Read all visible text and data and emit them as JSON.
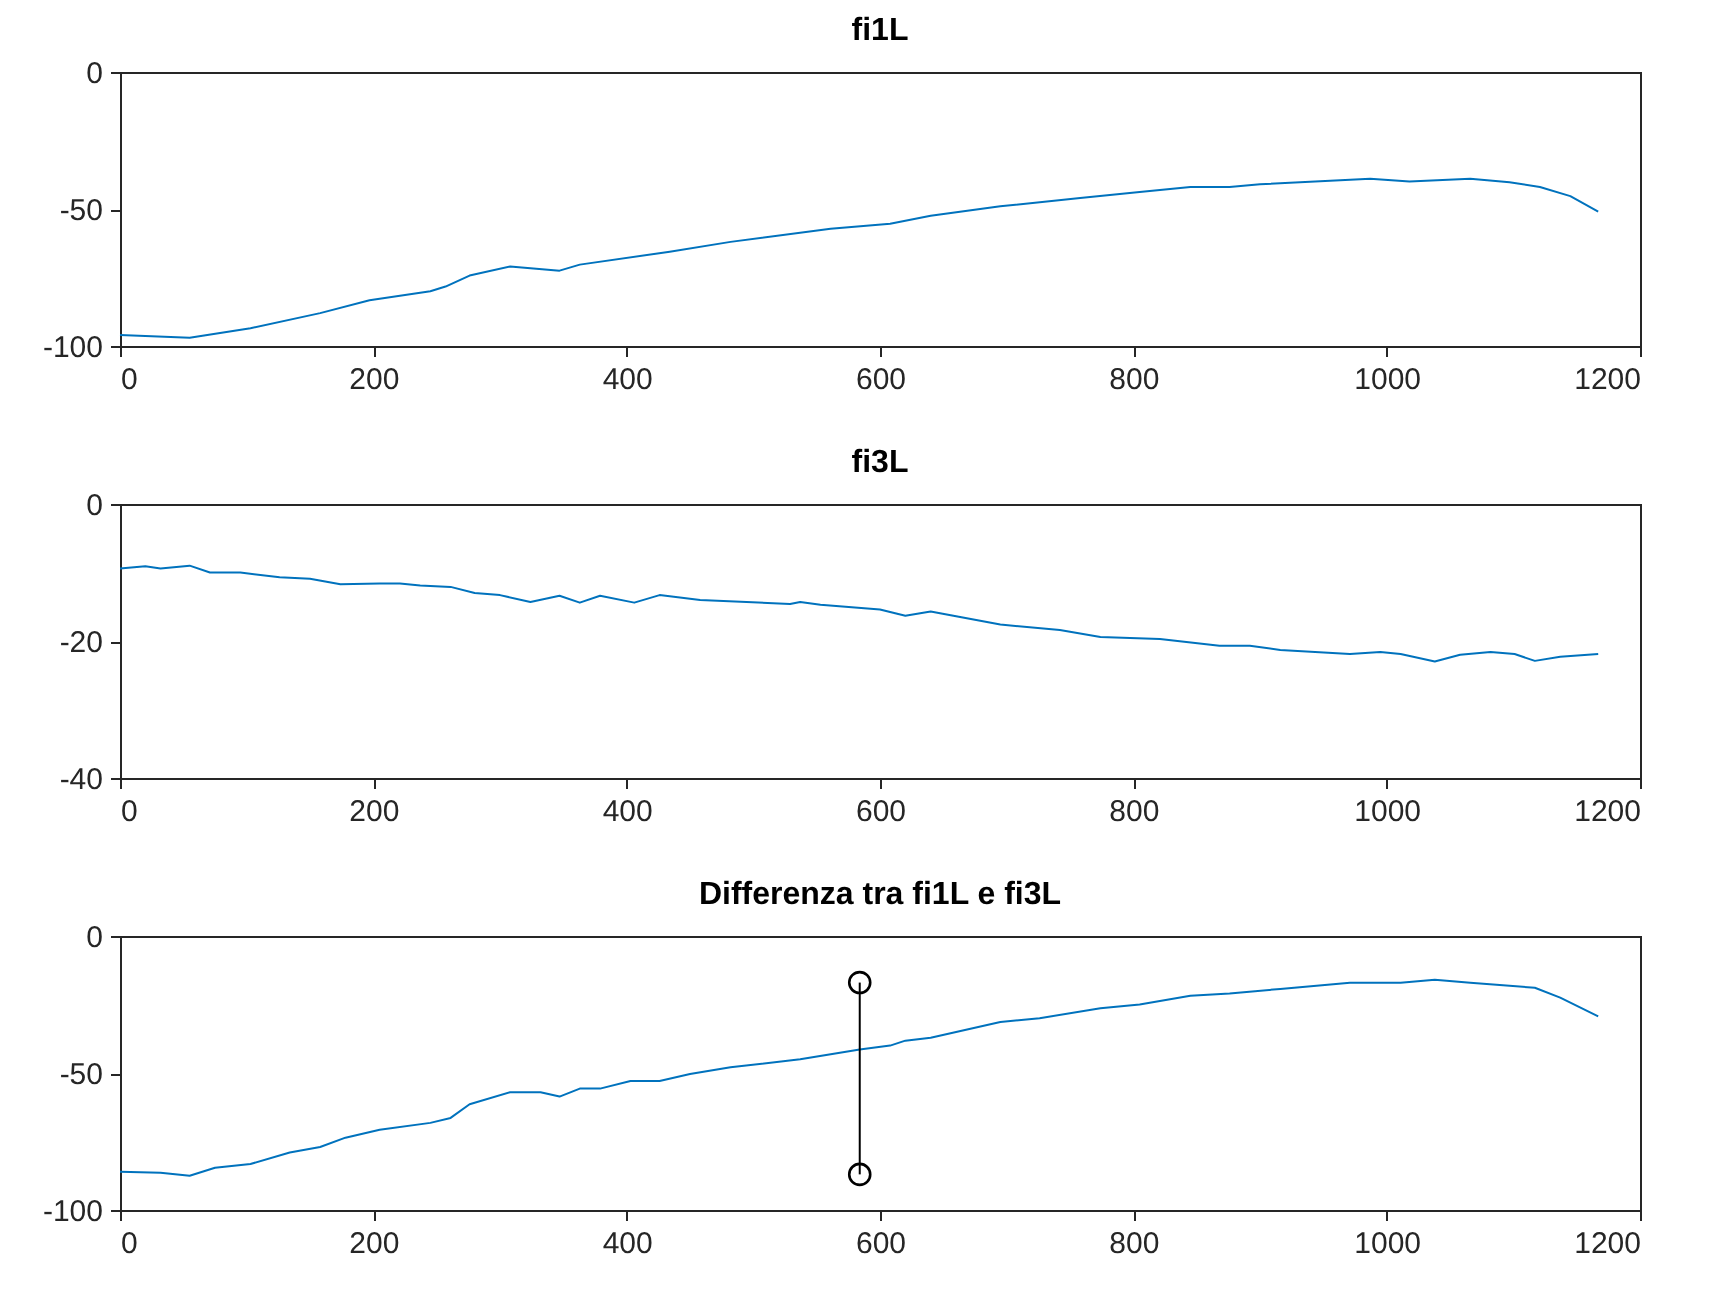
{
  "chart_data": [
    {
      "type": "line",
      "title": "fi1L",
      "xlim": [
        0,
        1200
      ],
      "xticks": [
        0,
        200,
        400,
        600,
        800,
        1000,
        1200
      ],
      "ylim": [
        -100,
        0
      ],
      "yticks": [
        -100,
        -50,
        0
      ],
      "series": [
        {
          "color": "#0072bd",
          "x": [
            0,
            55,
            103,
            158,
            197,
            245,
            257,
            276,
            308,
            347,
            363,
            434,
            482,
            561,
            608,
            640,
            695,
            758,
            805,
            845,
            876,
            900,
            987,
            1018,
            1066,
            1097,
            1121,
            1145,
            1167
          ],
          "values": [
            -96,
            -97,
            -93.5,
            -88,
            -83.3,
            -80,
            -78.3,
            -74.3,
            -71,
            -72.5,
            -70.3,
            -65.6,
            -62,
            -57.2,
            -55.4,
            -52.5,
            -49,
            -46,
            -43.8,
            -42,
            -42,
            -41,
            -39,
            -40,
            -39,
            -40.2,
            -42,
            -45.3,
            -51
          ]
        }
      ]
    },
    {
      "type": "line",
      "title": "fi3L",
      "xlim": [
        0,
        1200
      ],
      "xticks": [
        0,
        200,
        400,
        600,
        800,
        1000,
        1200
      ],
      "ylim": [
        -40,
        0
      ],
      "yticks": [
        -40,
        -20,
        0
      ],
      "series": [
        {
          "color": "#0072bd",
          "x": [
            0,
            20,
            32,
            55,
            71,
            95,
            126,
            150,
            174,
            205,
            221,
            237,
            261,
            280,
            300,
            324,
            347,
            363,
            379,
            406,
            426,
            458,
            529,
            537,
            553,
            600,
            620,
            640,
            695,
            742,
            774,
            821,
            868,
            892,
            916,
            971,
            995,
            1011,
            1038,
            1058,
            1082,
            1101,
            1117,
            1137,
            1167
          ],
          "values": [
            -9.4,
            -9.1,
            -9.4,
            -9,
            -10,
            -10,
            -10.7,
            -10.9,
            -11.7,
            -11.6,
            -11.6,
            -11.9,
            -12.1,
            -13,
            -13.3,
            -14.3,
            -13.4,
            -14.4,
            -13.4,
            -14.4,
            -13.3,
            -14,
            -14.6,
            -14.3,
            -14.7,
            -15.4,
            -16.3,
            -15.7,
            -17.6,
            -18.4,
            -19.4,
            -19.7,
            -20.7,
            -20.7,
            -21.3,
            -21.9,
            -21.6,
            -21.9,
            -23,
            -22,
            -21.6,
            -21.9,
            -22.9,
            -22.3,
            -21.9
          ]
        }
      ]
    },
    {
      "type": "line",
      "title": "Differenza tra fi1L e fi3L",
      "xlim": [
        0,
        1200
      ],
      "xticks": [
        0,
        200,
        400,
        600,
        800,
        1000,
        1200
      ],
      "ylim": [
        -100,
        0
      ],
      "yticks": [
        -100,
        -50,
        0
      ],
      "series": [
        {
          "color": "#0072bd",
          "x": [
            0,
            32,
            55,
            75,
            103,
            134,
            158,
            178,
            205,
            245,
            261,
            276,
            308,
            332,
            347,
            363,
            379,
            403,
            426,
            450,
            482,
            537,
            584,
            608,
            620,
            640,
            695,
            726,
            774,
            805,
            845,
            876,
            916,
            971,
            1011,
            1038,
            1066,
            1117,
            1137,
            1167
          ],
          "values": [
            -86,
            -86.4,
            -87.5,
            -84.6,
            -83.2,
            -79,
            -77,
            -73.6,
            -70.7,
            -68.2,
            -66.4,
            -61.4,
            -57,
            -57,
            -58.6,
            -55.7,
            -55.7,
            -52.9,
            -52.9,
            -50.4,
            -47.9,
            -45,
            -41.4,
            -40,
            -38.2,
            -37.1,
            -31.4,
            -30,
            -26.4,
            -25,
            -21.8,
            -21,
            -19.3,
            -17.1,
            -17.1,
            -16,
            -17.1,
            -18.9,
            -22.5,
            -29.3
          ]
        },
        {
          "color": "#000000",
          "marker": "circle",
          "x": [
            584,
            584
          ],
          "values": [
            -17,
            -87
          ]
        }
      ]
    }
  ]
}
